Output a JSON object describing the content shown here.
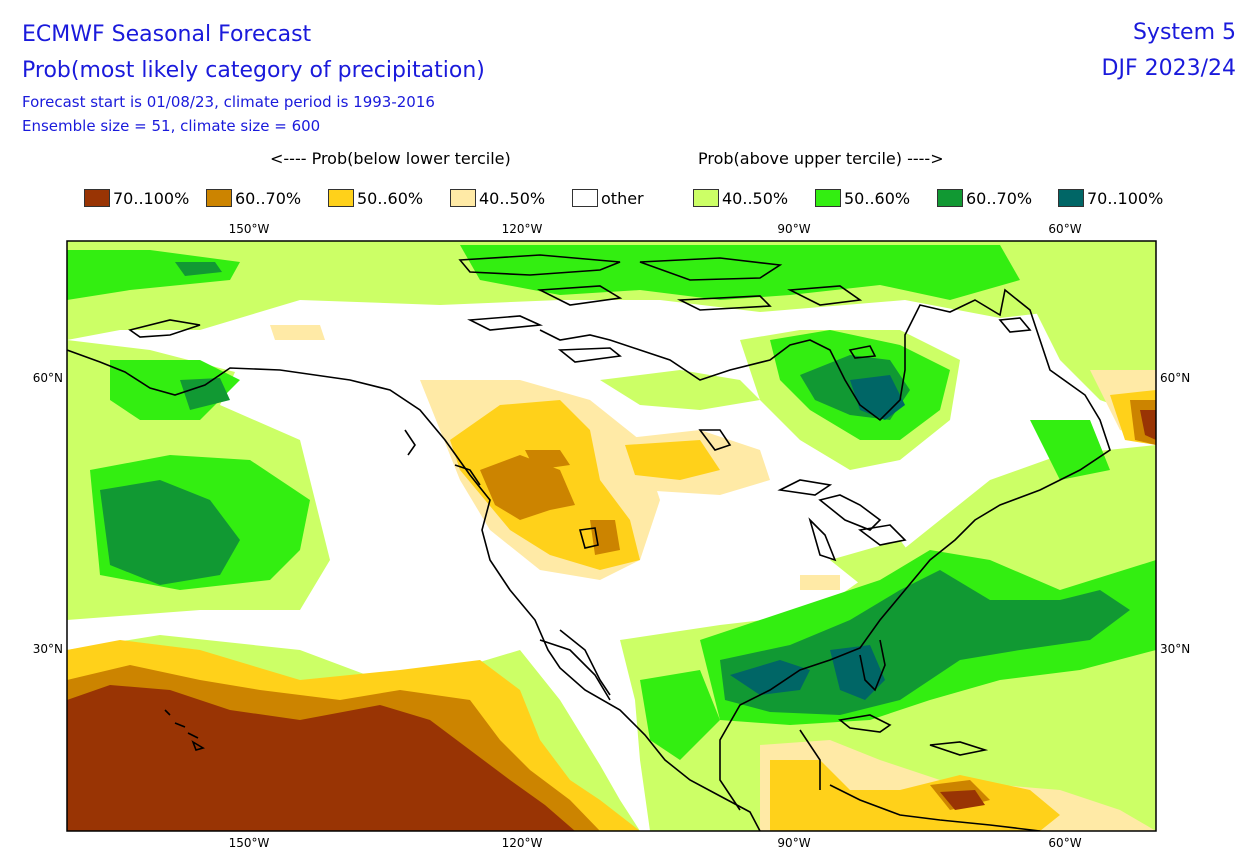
{
  "header": {
    "title": "ECMWF Seasonal Forecast",
    "subtitle": "Prob(most likely category of precipitation)",
    "forecast_info": "Forecast start is 01/08/23, climate period is 1993-2016",
    "ensemble_info": "Ensemble size = 51, climate size = 600",
    "system": "System 5",
    "season": "DJF 2023/24"
  },
  "legend": {
    "below_header": "<---- Prob(below lower tercile)",
    "above_header": "Prob(above upper tercile) ---->",
    "items": [
      {
        "label": "70..100%",
        "color": "#993404"
      },
      {
        "label": "60..70%",
        "color": "#cc8400"
      },
      {
        "label": "50..60%",
        "color": "#ffd11a"
      },
      {
        "label": "40..50%",
        "color": "#ffeaa6"
      },
      {
        "label": "other",
        "color": "#ffffff"
      },
      {
        "label": "40..50%",
        "color": "#ccff66"
      },
      {
        "label": "50..60%",
        "color": "#33ee11"
      },
      {
        "label": "60..70%",
        "color": "#119933"
      },
      {
        "label": "70..100%",
        "color": "#006666"
      }
    ]
  },
  "map": {
    "lon_labels": [
      "150°W",
      "120°W",
      "90°W",
      "60°W"
    ],
    "lat_labels": [
      "60°N",
      "30°N"
    ]
  }
}
